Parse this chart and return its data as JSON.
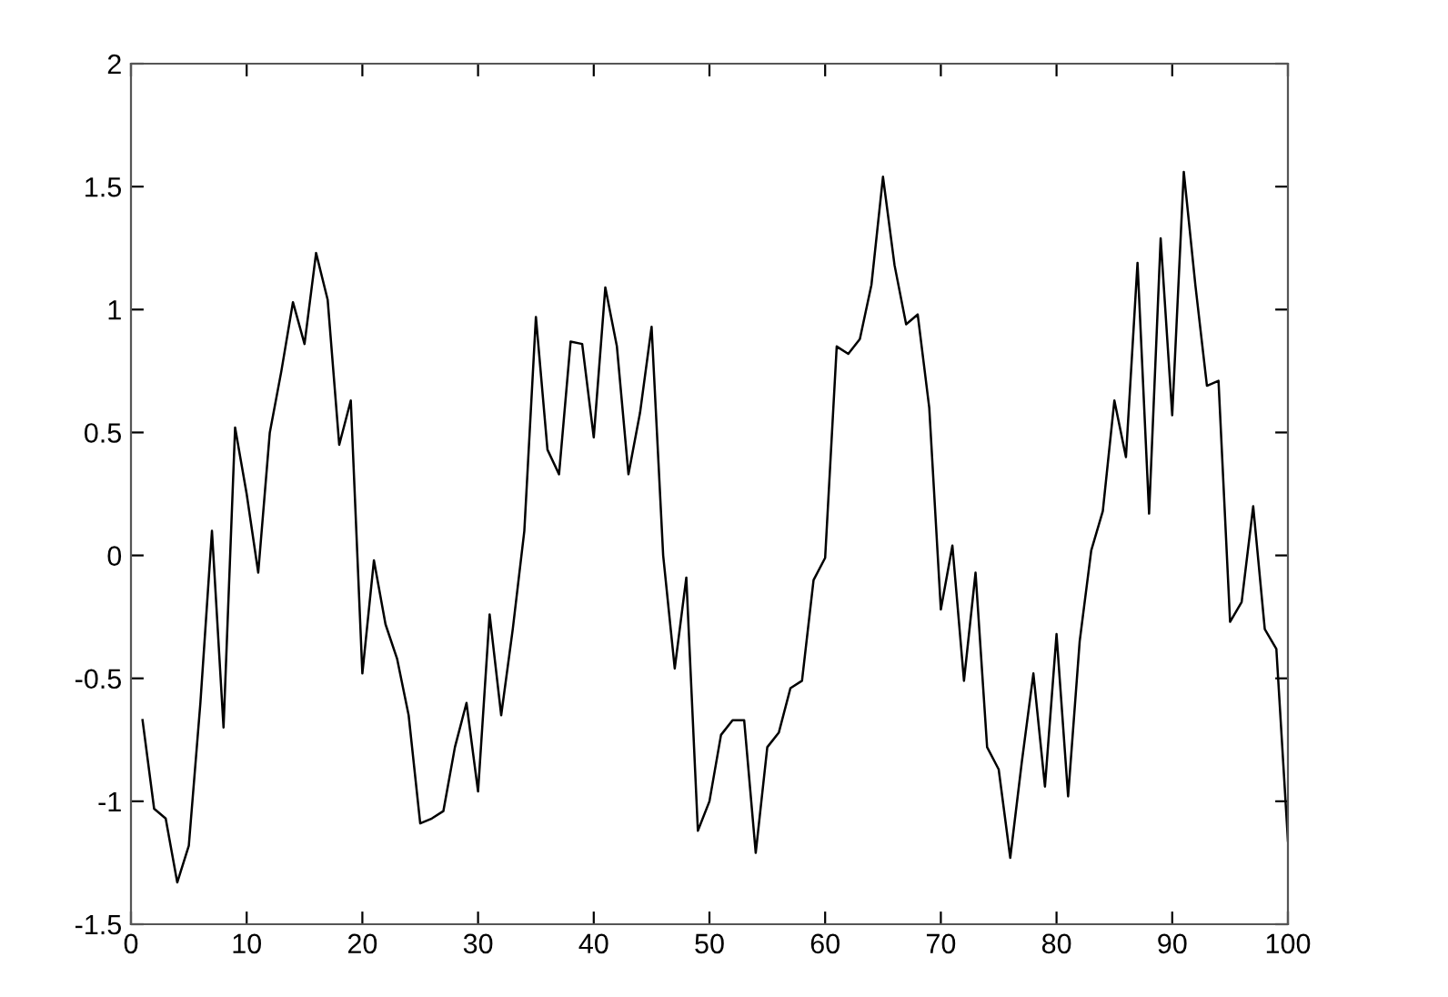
{
  "chart_data": {
    "type": "line",
    "x": [
      1,
      2,
      3,
      4,
      5,
      6,
      7,
      8,
      9,
      10,
      11,
      12,
      13,
      14,
      15,
      16,
      17,
      18,
      19,
      20,
      21,
      22,
      23,
      24,
      25,
      26,
      27,
      28,
      29,
      30,
      31,
      32,
      33,
      34,
      35,
      36,
      37,
      38,
      39,
      40,
      41,
      42,
      43,
      44,
      45,
      46,
      47,
      48,
      49,
      50,
      51,
      52,
      53,
      54,
      55,
      56,
      57,
      58,
      59,
      60,
      61,
      62,
      63,
      64,
      65,
      66,
      67,
      68,
      69,
      70,
      71,
      72,
      73,
      74,
      75,
      76,
      77,
      78,
      79,
      80,
      81,
      82,
      83,
      84,
      85,
      86,
      87,
      88,
      89,
      90,
      91,
      92,
      93,
      94,
      95,
      96,
      97,
      98,
      99,
      100
    ],
    "series": [
      {
        "color": "#000000",
        "values": [
          -0.67,
          -1.03,
          -1.07,
          -1.33,
          -1.18,
          -0.6,
          0.1,
          -0.7,
          0.52,
          0.25,
          -0.07,
          0.5,
          0.75,
          1.03,
          0.86,
          1.23,
          1.04,
          0.45,
          0.63,
          -0.48,
          -0.02,
          -0.28,
          -0.42,
          -0.65,
          -1.09,
          -1.07,
          -1.04,
          -0.78,
          -0.6,
          -0.96,
          -0.24,
          -0.65,
          -0.3,
          0.1,
          0.97,
          0.43,
          0.33,
          0.87,
          0.86,
          0.48,
          1.09,
          0.85,
          0.33,
          0.58,
          0.93,
          0.0,
          -0.46,
          -0.09,
          -1.12,
          -1.0,
          -0.73,
          -0.67,
          -0.67,
          -1.21,
          -0.78,
          -0.72,
          -0.54,
          -0.51,
          -0.1,
          -0.01,
          0.85,
          0.82,
          0.88,
          1.1,
          1.54,
          1.18,
          0.94,
          0.98,
          0.6,
          -0.22,
          0.04,
          -0.51,
          -0.07,
          -0.78,
          -0.87,
          -1.23,
          -0.84,
          -0.48,
          -0.94,
          -0.32,
          -0.98,
          -0.35,
          0.02,
          0.18,
          0.63,
          0.4,
          1.19,
          0.17,
          1.29,
          0.57,
          1.56,
          1.1,
          0.69,
          0.71,
          -0.27,
          -0.19,
          0.2,
          -0.3,
          -0.38,
          -1.16
        ]
      }
    ],
    "xlim": [
      0,
      100
    ],
    "xticks": [
      0,
      10,
      20,
      30,
      40,
      50,
      60,
      70,
      80,
      90,
      100
    ],
    "ylim": [
      -1.5,
      2
    ],
    "yticks": [
      -1.5,
      -1,
      -0.5,
      0,
      0.5,
      1,
      1.5,
      2
    ],
    "grid": false,
    "legend": false,
    "marker": "none",
    "line_style": "solid"
  }
}
